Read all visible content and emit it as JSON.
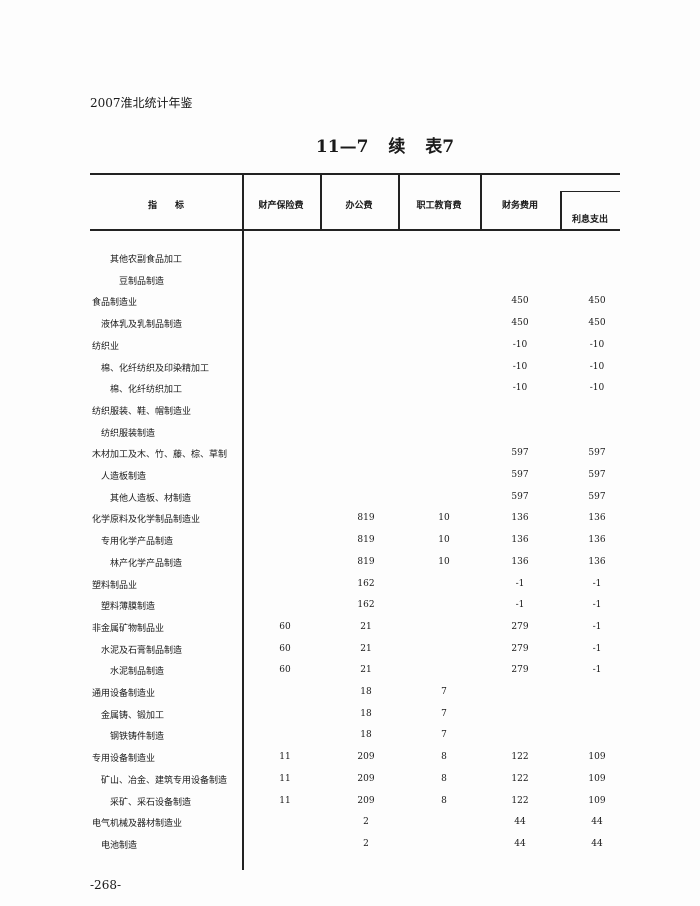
{
  "header": {
    "yearbook": "2007淮北统计年鉴",
    "title": "11—7   续 表7"
  },
  "table": {
    "columns": [
      "指　　标",
      "财产保险费",
      "办公费",
      "职工教育费",
      "财务费用",
      "利息支出"
    ],
    "rows": [
      {
        "label": "其他农副食品加工",
        "indent": 2,
        "values": [
          "",
          "",
          "",
          "",
          ""
        ]
      },
      {
        "label": "豆制品制造",
        "indent": 3,
        "values": [
          "",
          "",
          "",
          "",
          ""
        ]
      },
      {
        "label": "食品制造业",
        "indent": 0,
        "values": [
          "",
          "",
          "",
          "450",
          "450"
        ]
      },
      {
        "label": "液体乳及乳制品制造",
        "indent": 1,
        "values": [
          "",
          "",
          "",
          "450",
          "450"
        ]
      },
      {
        "label": "纺织业",
        "indent": 0,
        "values": [
          "",
          "",
          "",
          "-10",
          "-10"
        ]
      },
      {
        "label": "棉、化纤纺织及印染精加工",
        "indent": 1,
        "values": [
          "",
          "",
          "",
          "-10",
          "-10"
        ]
      },
      {
        "label": "棉、化纤纺织加工",
        "indent": 2,
        "values": [
          "",
          "",
          "",
          "-10",
          "-10"
        ]
      },
      {
        "label": "纺织服装、鞋、帽制造业",
        "indent": 0,
        "values": [
          "",
          "",
          "",
          "",
          ""
        ]
      },
      {
        "label": "纺织服装制造",
        "indent": 1,
        "values": [
          "",
          "",
          "",
          "",
          ""
        ]
      },
      {
        "label": "木材加工及木、竹、藤、棕、草制",
        "indent": 0,
        "values": [
          "",
          "",
          "",
          "597",
          "597"
        ]
      },
      {
        "label": "人造板制造",
        "indent": 1,
        "values": [
          "",
          "",
          "",
          "597",
          "597"
        ]
      },
      {
        "label": "其他人造板、材制造",
        "indent": 2,
        "values": [
          "",
          "",
          "",
          "597",
          "597"
        ]
      },
      {
        "label": "化学原料及化学制品制造业",
        "indent": 0,
        "values": [
          "",
          "819",
          "10",
          "136",
          "136"
        ]
      },
      {
        "label": "专用化学产品制造",
        "indent": 1,
        "values": [
          "",
          "819",
          "10",
          "136",
          "136"
        ]
      },
      {
        "label": "林产化学产品制造",
        "indent": 2,
        "values": [
          "",
          "819",
          "10",
          "136",
          "136"
        ]
      },
      {
        "label": "塑料制品业",
        "indent": 0,
        "values": [
          "",
          "162",
          "",
          "-1",
          "-1"
        ]
      },
      {
        "label": "塑料薄膜制造",
        "indent": 1,
        "values": [
          "",
          "162",
          "",
          "-1",
          "-1"
        ]
      },
      {
        "label": "非金属矿物制品业",
        "indent": 0,
        "values": [
          "60",
          "21",
          "",
          "279",
          "-1"
        ]
      },
      {
        "label": "水泥及石膏制品制造",
        "indent": 1,
        "values": [
          "60",
          "21",
          "",
          "279",
          "-1"
        ]
      },
      {
        "label": "水泥制品制造",
        "indent": 2,
        "values": [
          "60",
          "21",
          "",
          "279",
          "-1"
        ]
      },
      {
        "label": "通用设备制造业",
        "indent": 0,
        "values": [
          "",
          "18",
          "7",
          "",
          ""
        ]
      },
      {
        "label": "金属铸、锻加工",
        "indent": 1,
        "values": [
          "",
          "18",
          "7",
          "",
          ""
        ]
      },
      {
        "label": "钢铁铸件制造",
        "indent": 2,
        "values": [
          "",
          "18",
          "7",
          "",
          ""
        ]
      },
      {
        "label": "专用设备制造业",
        "indent": 0,
        "values": [
          "11",
          "209",
          "8",
          "122",
          "109"
        ]
      },
      {
        "label": "矿山、冶金、建筑专用设备制造",
        "indent": 1,
        "values": [
          "11",
          "209",
          "8",
          "122",
          "109"
        ]
      },
      {
        "label": "采矿、采石设备制造",
        "indent": 2,
        "values": [
          "11",
          "209",
          "8",
          "122",
          "109"
        ]
      },
      {
        "label": "电气机械及器材制造业",
        "indent": 0,
        "values": [
          "",
          "2",
          "",
          "44",
          "44"
        ]
      },
      {
        "label": "电池制造",
        "indent": 1,
        "values": [
          "",
          "2",
          "",
          "44",
          "44"
        ]
      }
    ]
  },
  "footer": {
    "page_number": "-268-"
  }
}
